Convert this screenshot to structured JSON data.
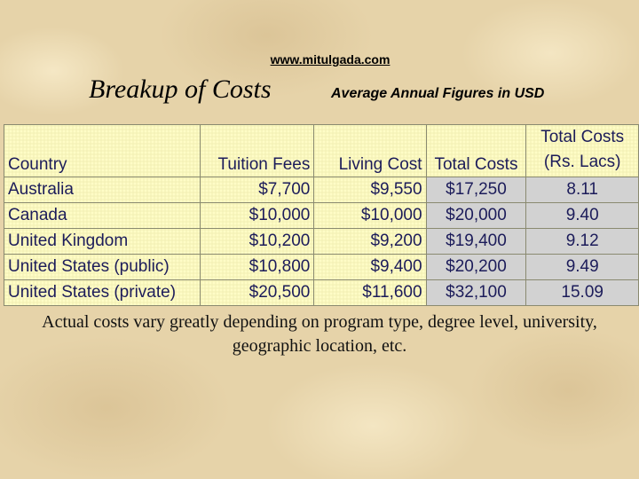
{
  "header": {
    "url": "www.mitulgada.com",
    "title": "Breakup of Costs",
    "subtitle": "Average Annual Figures in USD"
  },
  "table": {
    "columns": [
      "Country",
      "Tuition Fees",
      "Living Cost",
      "Total Costs",
      "Total Costs (Rs. Lacs)"
    ],
    "rows": [
      [
        "Australia",
        "$7,700",
        "$9,550",
        "$17,250",
        "8.11"
      ],
      [
        "Canada",
        "$10,000",
        "$10,000",
        "$20,000",
        "9.40"
      ],
      [
        "United Kingdom",
        "$10,200",
        "$9,200",
        "$19,400",
        "9.12"
      ],
      [
        "United States (public)",
        "$10,800",
        "$9,400",
        "$20,200",
        "9.49"
      ],
      [
        "United States (private)",
        "$20,500",
        "$11,600",
        "$32,100",
        "15.09"
      ]
    ]
  },
  "footer": {
    "note": "Actual costs vary greatly depending on program type, degree level, university, geographic location, etc."
  }
}
